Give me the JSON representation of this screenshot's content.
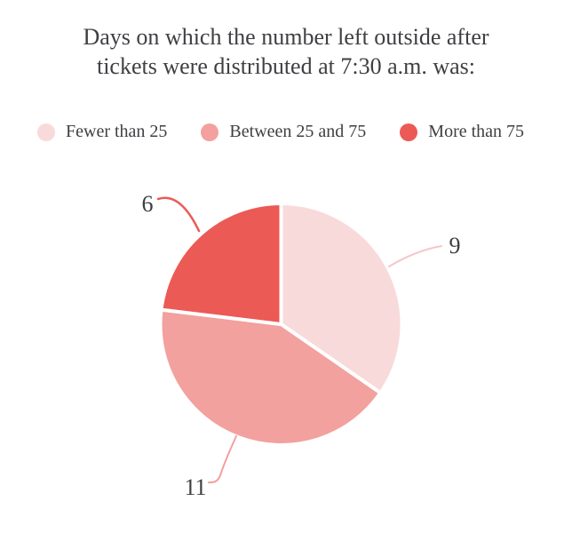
{
  "page": {
    "background": "#ffffff",
    "text_color": "#3e3f42"
  },
  "title_lines": [
    "Days on which the number left outside after",
    "tickets were distributed at 7:30 a.m. was:"
  ],
  "legend": {
    "position": "top",
    "items": [
      {
        "label": "Fewer than 25",
        "color": "#f9dadb"
      },
      {
        "label": "Between 25 and 75",
        "color": "#f2a19e"
      },
      {
        "label": "More than 75",
        "color": "#ec5a55"
      }
    ]
  },
  "chart_data": {
    "type": "pie",
    "title": "Days on which the number left outside after tickets were distributed at 7:30 a.m. was:",
    "unit": "days",
    "total": 26,
    "start_angle_deg": 0,
    "direction": "clockwise",
    "legend_position": "top",
    "slice_gap_color": "#ffffff",
    "slices": [
      {
        "label": "Fewer than 25",
        "value": 9,
        "color": "#f9dadb",
        "callout_color": "#f5c6c9"
      },
      {
        "label": "Between 25 and 75",
        "value": 11,
        "color": "#f2a19e",
        "callout_color": "#f2a19e"
      },
      {
        "label": "More than 75",
        "value": 6,
        "color": "#ec5a55",
        "callout_color": "#ec5a55"
      }
    ]
  }
}
